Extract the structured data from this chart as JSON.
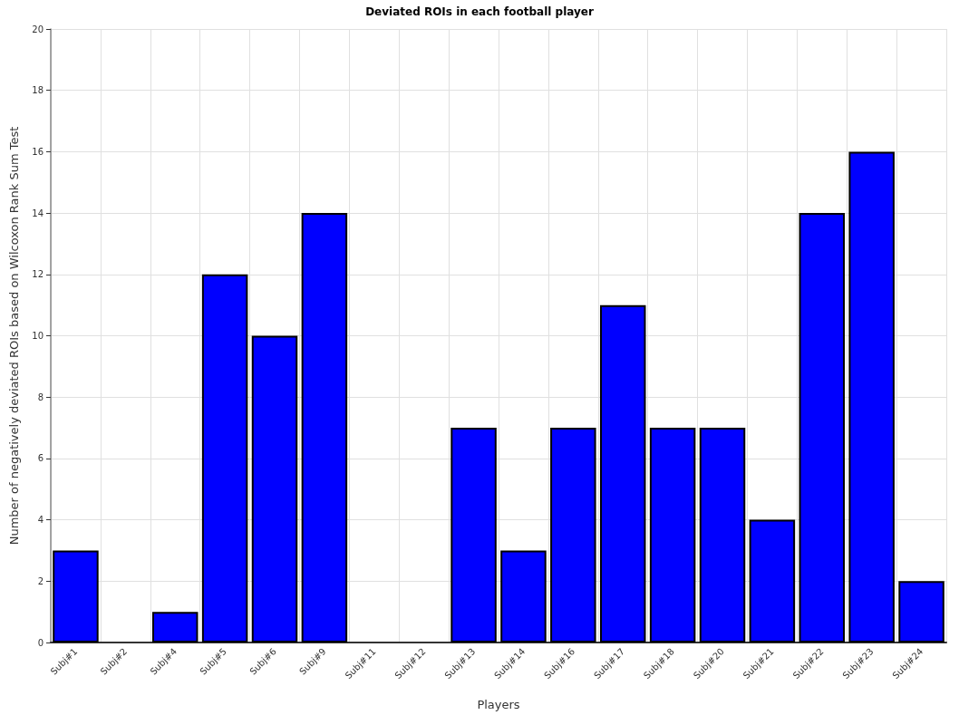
{
  "chart_data": {
    "type": "bar",
    "title": "Deviated ROIs in each football player",
    "xlabel": "Players",
    "ylabel": "Number of negatively deviated ROIs based on Wilcoxon Rank Sum Test",
    "categories": [
      "Subj#1",
      "Subj#2",
      "Subj#4",
      "Subj#5",
      "Subj#6",
      "Subj#9",
      "Subj#11",
      "Subj#12",
      "Subj#13",
      "Subj#14",
      "Subj#16",
      "Subj#17",
      "Subj#18",
      "Subj#20",
      "Subj#21",
      "Subj#22",
      "Subj#23",
      "Subj#24"
    ],
    "values": [
      3,
      0,
      1,
      12,
      10,
      14,
      0,
      0,
      7,
      3,
      7,
      11,
      7,
      7,
      4,
      14,
      16,
      2
    ],
    "color": "#0000ff",
    "ylim": [
      0,
      20
    ],
    "yticks": [
      0,
      2,
      4,
      6,
      8,
      10,
      12,
      14,
      16,
      18,
      20
    ],
    "grid": true
  }
}
